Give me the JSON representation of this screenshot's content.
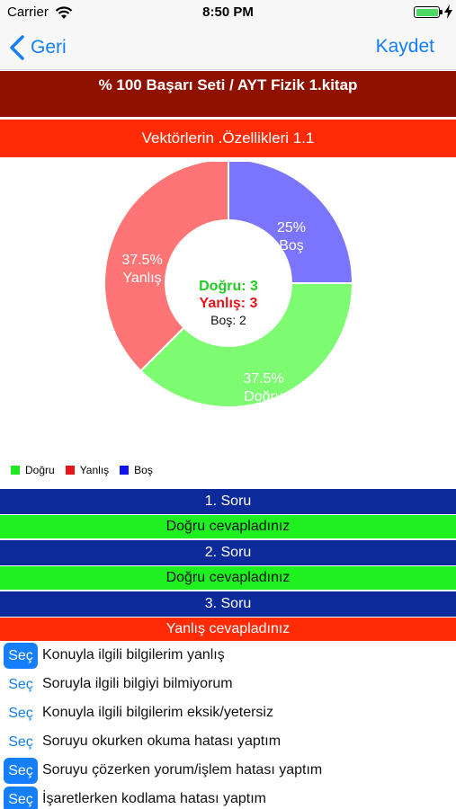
{
  "status_bar": {
    "carrier": "Carrier",
    "time": "8:50 PM",
    "battery_level": 1.0
  },
  "nav": {
    "back_label": "Geri",
    "save_label": "Kaydet"
  },
  "header": {
    "title": "% 100 Başarı Seti / AYT Fizik 1.kitap",
    "subtitle": "Vektörlerin .Özellikleri 1.1"
  },
  "colors": {
    "accent": "#157efb",
    "title_bg": "#8f1100",
    "subtitle_bg": "#ff2b07",
    "question_bg": "#0c2a9a",
    "correct_bg": "#1ff01f",
    "wrong_bg": "#ff2b07"
  },
  "chart_data": {
    "type": "pie",
    "donut": true,
    "slices": [
      {
        "label": "Boş",
        "percent": "25%",
        "value": 2,
        "color": "#7b74ff"
      },
      {
        "label": "Doğru",
        "percent": "37.5%",
        "value": 3,
        "color": "#7dfb71"
      },
      {
        "label": "Yanlış",
        "percent": "37.5%",
        "value": 3,
        "color": "#ff7474"
      }
    ],
    "center": {
      "line1": "Doğru: 3",
      "line2": "Yanlış: 3",
      "line3": "Boş: 2"
    },
    "legend": [
      {
        "label": "Doğru",
        "color": "#22e822"
      },
      {
        "label": "Yanlış",
        "color": "#e8141b"
      },
      {
        "label": "Boş",
        "color": "#1212f0"
      }
    ],
    "legend_position": "bottom-left"
  },
  "questions": [
    {
      "title": "1. Soru",
      "result": "Doğru cevapladınız",
      "status": "correct"
    },
    {
      "title": "2. Soru",
      "result": "Doğru cevapladınız",
      "status": "correct"
    },
    {
      "title": "3. Soru",
      "result": "Yanlış cevapladınız",
      "status": "wrong"
    }
  ],
  "options": [
    {
      "button": "Seç",
      "text": "Konuyla ilgili bilgilerim yanlış",
      "selected": true
    },
    {
      "button": "Seç",
      "text": "Soruyla ilgili bilgiyi bilmiyorum",
      "selected": false
    },
    {
      "button": "Seç",
      "text": "Konuyla ilgili bilgilerim eksik/yetersiz",
      "selected": false
    },
    {
      "button": "Seç",
      "text": "Soruyu okurken okuma hatası yaptım",
      "selected": false
    },
    {
      "button": "Seç",
      "text": "Soruyu çözerken yorum/işlem hatası yaptım",
      "selected": true
    },
    {
      "button": "Seç",
      "text": "İşaretlerken kodlama hatası yaptım",
      "selected": true
    }
  ]
}
